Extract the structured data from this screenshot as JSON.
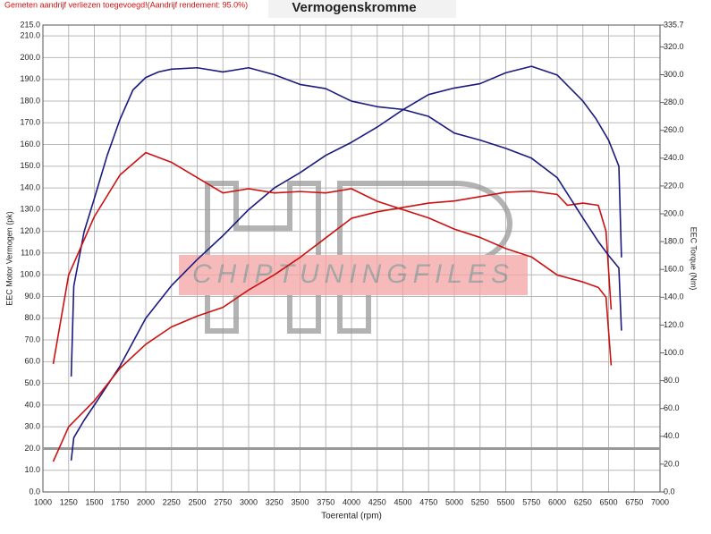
{
  "chart_data": {
    "type": "line",
    "note_text": "Gemeten aandrijf verliezen toegevoegd!(Aandrijf rendement: 95.0%)",
    "title": "Vermogenskromme",
    "x_label": "Toerental (rpm)",
    "y_label": "EEC Motor Vermogen (pk)",
    "y2_label": "EEC Torque (Nm)",
    "watermark": "CHIPTUNINGFILES",
    "grid": true,
    "reference_value": 20,
    "xlim": [
      1000,
      7000
    ],
    "xticks": [
      1000,
      1250,
      1500,
      1750,
      2000,
      2250,
      2500,
      2750,
      3000,
      3250,
      3500,
      3750,
      4000,
      4250,
      4500,
      4750,
      5000,
      5250,
      5500,
      5750,
      6000,
      6250,
      6500,
      6750,
      7000
    ],
    "ylim": [
      0,
      215
    ],
    "yticks": [
      {
        "value": 0,
        "label": "0.0"
      },
      {
        "value": 10,
        "label": "10.0"
      },
      {
        "value": 20,
        "label": "20.0"
      },
      {
        "value": 30,
        "label": "30.0"
      },
      {
        "value": 40,
        "label": "40.0"
      },
      {
        "value": 50,
        "label": "50.0"
      },
      {
        "value": 60,
        "label": "60.0"
      },
      {
        "value": 70,
        "label": "70.0"
      },
      {
        "value": 80,
        "label": "80.0"
      },
      {
        "value": 90,
        "label": "90.0"
      },
      {
        "value": 100,
        "label": "100.0"
      },
      {
        "value": 110,
        "label": "110.0"
      },
      {
        "value": 120,
        "label": "120.0"
      },
      {
        "value": 130,
        "label": "130.0"
      },
      {
        "value": 140,
        "label": "140.0"
      },
      {
        "value": 150,
        "label": "150.0"
      },
      {
        "value": 160,
        "label": "160.0"
      },
      {
        "value": 170,
        "label": "170.0"
      },
      {
        "value": 180,
        "label": "180.0"
      },
      {
        "value": 190,
        "label": "190.0"
      },
      {
        "value": 200,
        "label": "200.0"
      },
      {
        "value": 210,
        "label": "210.0"
      },
      {
        "value": 215,
        "label": "215.0"
      }
    ],
    "y2lim": [
      0,
      335.7
    ],
    "y2ticks": [
      {
        "value": 0,
        "label": "0.0"
      },
      {
        "value": 20,
        "label": "20.0"
      },
      {
        "value": 40,
        "label": "40.0"
      },
      {
        "value": 60,
        "label": "60.0"
      },
      {
        "value": 80,
        "label": "80.0"
      },
      {
        "value": 100,
        "label": "100.0"
      },
      {
        "value": 120,
        "label": "120.0"
      },
      {
        "value": 140,
        "label": "140.0"
      },
      {
        "value": 160,
        "label": "160.0"
      },
      {
        "value": 180,
        "label": "180.0"
      },
      {
        "value": 200,
        "label": "200.0"
      },
      {
        "value": 220,
        "label": "220.0"
      },
      {
        "value": 240,
        "label": "240.0"
      },
      {
        "value": 260,
        "label": "260.0"
      },
      {
        "value": 280,
        "label": "280.0"
      },
      {
        "value": 300,
        "label": "300.0"
      },
      {
        "value": 320,
        "label": "320.0"
      },
      {
        "value": 335.7,
        "label": "335.7"
      }
    ],
    "series": [
      {
        "color": "#1a1a80",
        "x": [
          1275,
          1300,
          1400,
          1500,
          1750,
          2000,
          2250,
          2500,
          2750,
          3000,
          3250,
          3500,
          3750,
          4000,
          4250,
          4500,
          4750,
          5000,
          5250,
          5500,
          5750,
          6000,
          6250,
          6375,
          6500,
          6600,
          6625
        ],
        "values": [
          14.5,
          25,
          33,
          40,
          58,
          80,
          95,
          107,
          118,
          130,
          140,
          147,
          155,
          161,
          168,
          176,
          183,
          186,
          188,
          193,
          196,
          192,
          180,
          172,
          162,
          150,
          108
        ]
      },
      {
        "color": "#cc1111",
        "x": [
          1100,
          1250,
          1500,
          1750,
          2000,
          2250,
          2500,
          2750,
          3000,
          3250,
          3500,
          3750,
          4000,
          4250,
          4500,
          4750,
          5000,
          5250,
          5500,
          5750,
          6000,
          6100,
          6250,
          6400,
          6475,
          6525
        ],
        "values": [
          14,
          30,
          42,
          57,
          68,
          76,
          81,
          85,
          93,
          100,
          108,
          117,
          126,
          129,
          131,
          133,
          134,
          136,
          138,
          138.5,
          137,
          132,
          133,
          132,
          120,
          84
        ]
      },
      {
        "color": "#1a1a80",
        "axis": "y2",
        "x": [
          1275,
          1300,
          1400,
          1500,
          1625,
          1750,
          1875,
          2000,
          2125,
          2250,
          2500,
          2750,
          3000,
          3250,
          3500,
          3750,
          4000,
          4250,
          4500,
          4750,
          5000,
          5250,
          5500,
          5750,
          6000,
          6250,
          6400,
          6500,
          6600,
          6625
        ],
        "values": [
          83,
          148,
          187,
          211,
          242,
          268,
          289,
          298,
          302,
          304,
          305,
          302,
          305,
          300,
          293,
          290,
          281,
          277,
          275,
          270,
          258,
          253,
          247,
          240,
          226,
          197,
          180,
          170,
          161,
          116
        ]
      },
      {
        "color": "#cc1111",
        "axis": "y2",
        "x": [
          1100,
          1250,
          1500,
          1750,
          2000,
          2250,
          2500,
          2750,
          3000,
          3250,
          3500,
          3750,
          4000,
          4250,
          4500,
          4750,
          5000,
          5250,
          5500,
          5750,
          6000,
          6250,
          6400,
          6475,
          6525
        ],
        "values": [
          92,
          156,
          198,
          228,
          244,
          237,
          226,
          215,
          218,
          215,
          216,
          215,
          218,
          209,
          203,
          197,
          189,
          183,
          175,
          169,
          156,
          151,
          147,
          140,
          91
        ]
      }
    ]
  }
}
